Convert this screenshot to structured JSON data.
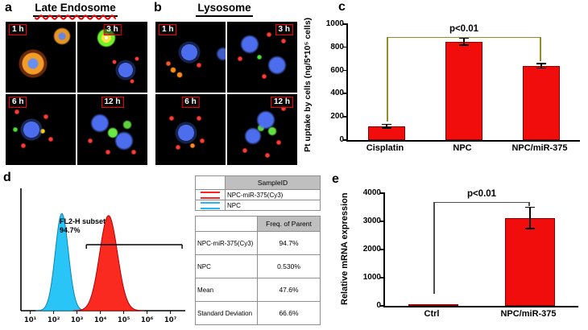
{
  "figure": {
    "panels": {
      "a": {
        "label": "a",
        "title": "Late Endosome",
        "timepoints": [
          "1 h",
          "3 h",
          "6 h",
          "12 h"
        ]
      },
      "b": {
        "label": "b",
        "title": "Lysosome",
        "timepoints": [
          "1 h",
          "3 h",
          "6 h",
          "12 h"
        ]
      },
      "c": {
        "label": "c"
      },
      "d": {
        "label": "d",
        "gate_annotation": [
          "FL2-H subset",
          "94.7%"
        ],
        "legend_table": {
          "header": "SampleID",
          "rows": [
            {
              "label": "NPC-miR-375(Cy3)",
              "color": "#ff2020"
            },
            {
              "label": "NPC",
              "color": "#29b6f6"
            }
          ]
        },
        "stats_table": {
          "header": "Freq. of Parent",
          "rows": [
            {
              "label": "NPC-miR-375(Cy3)",
              "value": "94.7%"
            },
            {
              "label": "NPC",
              "value": "0.530%"
            },
            {
              "label": "Mean",
              "value": "47.6%"
            },
            {
              "label": "Standard Deviation",
              "value": "66.6%"
            }
          ]
        }
      },
      "e": {
        "label": "e"
      }
    }
  },
  "chart_data": [
    {
      "id": "panel-c",
      "type": "bar",
      "categories": [
        "Cisplatin",
        "NPC",
        "NPC/miR-375"
      ],
      "values": [
        120,
        850,
        640
      ],
      "errors": [
        15,
        30,
        20
      ],
      "ylabel": "Pt uptake by cells (ng/5*10⁵ cells)",
      "ylim": [
        0,
        1000
      ],
      "yticks": [
        0,
        200,
        400,
        600,
        800,
        1000
      ],
      "bar_color": "#f20d0d",
      "annotation": "p<0.01",
      "bracket": {
        "x1": 0,
        "x2": 2,
        "level": 890,
        "y1": 160,
        "y2": 680,
        "color": "#8f8f2a"
      }
    },
    {
      "id": "panel-d",
      "type": "area",
      "subtype": "flow-cytometry-histogram",
      "x_ticks": [
        "10¹",
        "10²",
        "10³",
        "10⁴",
        "10⁵",
        "10⁶",
        "10⁷"
      ],
      "series": [
        {
          "name": "NPC",
          "color": "#29c5f6",
          "stroke": "#0a86b4",
          "peak_center_log": 2.35,
          "peak_sigma_log": 0.28,
          "peak_height_frac": 0.93
        },
        {
          "name": "NPC-miR-375(Cy3)",
          "color": "#fb2a20",
          "stroke": "#b40000",
          "peak_center_log": 4.35,
          "peak_sigma_log": 0.38,
          "peak_height_frac": 0.91
        }
      ],
      "gate": {
        "label": "FL2-H subset 94.7%",
        "from_log": 3.4,
        "to_log": 7.5
      }
    },
    {
      "id": "panel-e",
      "type": "bar",
      "categories": [
        "Ctrl",
        "NPC/miR-375"
      ],
      "values": [
        40,
        3120
      ],
      "errors": [
        0,
        380
      ],
      "ylabel": "Relative mRNA expression",
      "ylim": [
        0,
        4000
      ],
      "yticks": [
        0,
        1000,
        2000,
        3000,
        4000
      ],
      "bar_color": "#f20d0d",
      "annotation": "p<0.01",
      "bracket": {
        "x1": 0,
        "x2": 1,
        "level": 3700,
        "y1": 430,
        "y2": 3540,
        "color": "#4d4d4d"
      }
    }
  ]
}
